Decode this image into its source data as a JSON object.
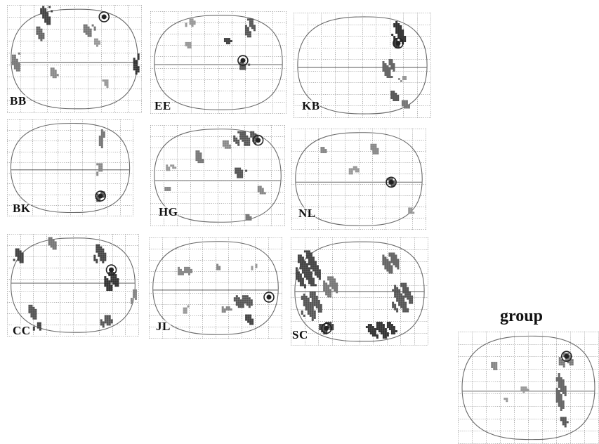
{
  "figure": {
    "group_title": "group",
    "panels": [
      {
        "id": "BB",
        "label": "BB"
      },
      {
        "id": "EE",
        "label": "EE"
      },
      {
        "id": "KB",
        "label": "KB"
      },
      {
        "id": "BK",
        "label": "BK"
      },
      {
        "id": "HG",
        "label": "HG"
      },
      {
        "id": "NL",
        "label": "NL"
      },
      {
        "id": "CC",
        "label": "CC"
      },
      {
        "id": "JL",
        "label": "JL"
      },
      {
        "id": "SC",
        "label": "SC"
      },
      {
        "id": "group",
        "label": ""
      }
    ]
  }
}
